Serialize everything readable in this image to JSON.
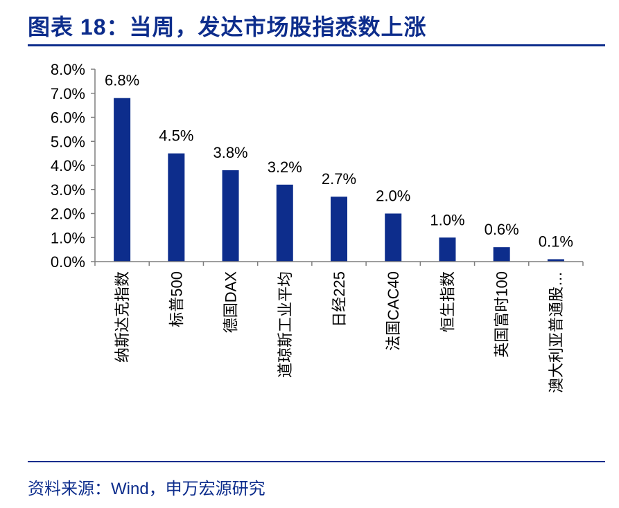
{
  "header": {
    "title": "图表 18：当周，发达市场股指悉数上涨"
  },
  "footer": {
    "source": "资料来源：Wind，申万宏源研究"
  },
  "chart_data": {
    "type": "bar",
    "categories": [
      "纳斯达克指数",
      "标普500",
      "德国DAX",
      "道琼斯工业平均",
      "日经225",
      "法国CAC40",
      "恒生指数",
      "英国富时100",
      "澳大利亚普通股…"
    ],
    "values": [
      6.8,
      4.5,
      3.8,
      3.2,
      2.7,
      2.0,
      1.0,
      0.6,
      0.1
    ],
    "data_labels": [
      "6.8%",
      "4.5%",
      "3.8%",
      "3.2%",
      "2.7%",
      "2.0%",
      "1.0%",
      "0.6%",
      "0.1%"
    ],
    "y_ticks": [
      0,
      1,
      2,
      3,
      4,
      5,
      6,
      7,
      8
    ],
    "y_tick_labels": [
      "0.0%",
      "1.0%",
      "2.0%",
      "3.0%",
      "4.0%",
      "5.0%",
      "6.0%",
      "7.0%",
      "8.0%"
    ],
    "ylim": [
      0,
      8
    ],
    "grid": false,
    "legend": "none",
    "title": "",
    "xlabel": "",
    "ylabel": "",
    "bar_color": "#0d2d8c",
    "axis_color": "#7f7f7f"
  }
}
